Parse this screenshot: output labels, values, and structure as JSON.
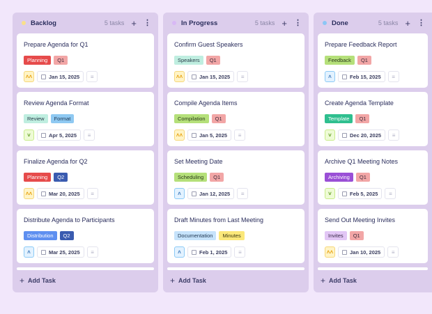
{
  "add_task_label": "Add Task",
  "columns": [
    {
      "title": "Backlog",
      "count": "5 tasks",
      "dot": "#f9e08a",
      "cards": [
        {
          "title": "Prepare Agenda for Q1",
          "tags": [
            {
              "label": "Planning",
              "bg": "#e64b4b",
              "fg": "#fff"
            },
            {
              "label": "Q1",
              "bg": "#f2a6a6",
              "fg": "#3a2a3a"
            }
          ],
          "priority": "high",
          "date": "Jan 15, 2025"
        },
        {
          "title": "Review Agenda Format",
          "tags": [
            {
              "label": "Review",
              "bg": "#bfeee0",
              "fg": "#2a3d4a"
            },
            {
              "label": "Format",
              "bg": "#8fc9f2",
              "fg": "#1e3550"
            }
          ],
          "priority": "low",
          "date": "Apr 5, 2025"
        },
        {
          "title": "Finalize Agenda for Q2",
          "tags": [
            {
              "label": "Planning",
              "bg": "#e64b4b",
              "fg": "#fff"
            },
            {
              "label": "Q2",
              "bg": "#3a5bb0",
              "fg": "#fff"
            }
          ],
          "priority": "high",
          "date": "Mar 20, 2025"
        },
        {
          "title": "Distribute Agenda to Participants",
          "tags": [
            {
              "label": "Distribution",
              "bg": "#5e8ff0",
              "fg": "#fff"
            },
            {
              "label": "Q2",
              "bg": "#3a5bb0",
              "fg": "#fff"
            }
          ],
          "priority": "medium",
          "date": "Mar 25, 2025"
        },
        {
          "title": "",
          "tags": [],
          "priority": "",
          "date": ""
        }
      ]
    },
    {
      "title": "In Progress",
      "count": "5 tasks",
      "dot": "#d8b8f5",
      "cards": [
        {
          "title": "Confirm Guest Speakers",
          "tags": [
            {
              "label": "Speakers",
              "bg": "#bfeee0",
              "fg": "#2a3d4a"
            },
            {
              "label": "Q1",
              "bg": "#f2a6a6",
              "fg": "#3a2a3a"
            }
          ],
          "priority": "high",
          "date": "Jan 15, 2025"
        },
        {
          "title": "Compile Agenda Items",
          "tags": [
            {
              "label": "Compilation",
              "bg": "#b5e07a",
              "fg": "#2a3a1a"
            },
            {
              "label": "Q1",
              "bg": "#f2a6a6",
              "fg": "#3a2a3a"
            }
          ],
          "priority": "high",
          "date": "Jan 5, 2025"
        },
        {
          "title": "Set Meeting Date",
          "tags": [
            {
              "label": "Scheduling",
              "bg": "#b5e07a",
              "fg": "#2a3a1a"
            },
            {
              "label": "Q1",
              "bg": "#f2a6a6",
              "fg": "#3a2a3a"
            }
          ],
          "priority": "medium",
          "date": "Jan 12, 2025"
        },
        {
          "title": "Draft Minutes from Last Meeting",
          "tags": [
            {
              "label": "Documentation",
              "bg": "#c6e3fb",
              "fg": "#1e3550"
            },
            {
              "label": "Minutes",
              "bg": "#fbe87a",
              "fg": "#3a3510"
            }
          ],
          "priority": "medium",
          "date": "Feb 1, 2025"
        },
        {
          "title": "",
          "tags": [],
          "priority": "",
          "date": ""
        }
      ]
    },
    {
      "title": "Done",
      "count": "5 tasks",
      "dot": "#8cc6f5",
      "cards": [
        {
          "title": "Prepare Feedback Report",
          "tags": [
            {
              "label": "Feedback",
              "bg": "#b5e07a",
              "fg": "#2a3a1a"
            },
            {
              "label": "Q1",
              "bg": "#f2a6a6",
              "fg": "#3a2a3a"
            }
          ],
          "priority": "medium",
          "date": "Feb 15, 2025"
        },
        {
          "title": "Create Agenda Template",
          "tags": [
            {
              "label": "Template",
              "bg": "#2fbf8f",
              "fg": "#fff"
            },
            {
              "label": "Q1",
              "bg": "#f2a6a6",
              "fg": "#3a2a3a"
            }
          ],
          "priority": "low",
          "date": "Dec 20, 2025"
        },
        {
          "title": "Archive Q1 Meeting Notes",
          "tags": [
            {
              "label": "Archiving",
              "bg": "#9a4fd6",
              "fg": "#fff"
            },
            {
              "label": "Q1",
              "bg": "#f2a6a6",
              "fg": "#3a2a3a"
            }
          ],
          "priority": "low",
          "date": "Feb 5, 2025"
        },
        {
          "title": "Send Out Meeting Invites",
          "tags": [
            {
              "label": "Invites",
              "bg": "#e2c6f5",
              "fg": "#3a2a4a"
            },
            {
              "label": "Q1",
              "bg": "#f2a6a6",
              "fg": "#3a2a3a"
            }
          ],
          "priority": "high",
          "date": "Jan 10, 2025"
        },
        {
          "title": "",
          "tags": [],
          "priority": "",
          "date": ""
        }
      ]
    }
  ]
}
